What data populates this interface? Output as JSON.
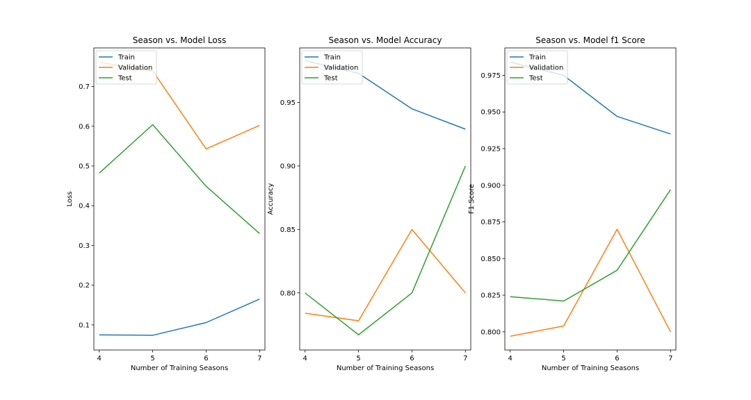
{
  "colors": {
    "train": "#1f77b4",
    "validation": "#ff7f0e",
    "test": "#2ca02c",
    "axes": "#000000",
    "legend_border": "#cccccc"
  },
  "chart_data": [
    {
      "type": "line",
      "title": "Season vs. Model Loss",
      "xlabel": "Number of Training Seasons",
      "ylabel": "Loss",
      "x": [
        4,
        5,
        6,
        7
      ],
      "xlim": [
        3.9,
        7.1
      ],
      "ylim": [
        0.037,
        0.797
      ],
      "xticks": [
        "4",
        "5",
        "6",
        "7"
      ],
      "yticks": [
        "0.1",
        "0.2",
        "0.3",
        "0.4",
        "0.5",
        "0.6",
        "0.7"
      ],
      "grid": false,
      "legend_position": "upper left",
      "series": [
        {
          "name": "Train",
          "color_key": "train",
          "values": [
            0.075,
            0.074,
            0.106,
            0.165
          ]
        },
        {
          "name": "Validation",
          "color_key": "validation",
          "values": [
            0.761,
            0.739,
            0.543,
            0.602
          ]
        },
        {
          "name": "Test",
          "color_key": "test",
          "values": [
            0.482,
            0.604,
            0.449,
            0.33
          ]
        }
      ]
    },
    {
      "type": "line",
      "title": "Season vs. Model Accuracy",
      "xlabel": "Number of Training Seasons",
      "ylabel": "Accuracy",
      "x": [
        4,
        5,
        6,
        7
      ],
      "xlim": [
        3.9,
        7.1
      ],
      "ylim": [
        0.755,
        0.993
      ],
      "xticks": [
        "4",
        "5",
        "6",
        "7"
      ],
      "yticks": [
        "0.80",
        "0.85",
        "0.90",
        "0.95"
      ],
      "grid": false,
      "legend_position": "upper left",
      "series": [
        {
          "name": "Train",
          "color_key": "train",
          "values": [
            0.983,
            0.973,
            0.945,
            0.929
          ]
        },
        {
          "name": "Validation",
          "color_key": "validation",
          "values": [
            0.784,
            0.778,
            0.85,
            0.8
          ]
        },
        {
          "name": "Test",
          "color_key": "test",
          "values": [
            0.8,
            0.767,
            0.8,
            0.9
          ]
        }
      ]
    },
    {
      "type": "line",
      "title": "Season vs. Model f1 Score",
      "xlabel": "Number of Training Seasons",
      "ylabel": "F1 Score",
      "x": [
        4,
        5,
        6,
        7
      ],
      "xlim": [
        3.9,
        7.1
      ],
      "ylim": [
        0.7876,
        0.9937
      ],
      "xticks": [
        "4",
        "5",
        "6",
        "7"
      ],
      "yticks": [
        "0.800",
        "0.825",
        "0.850",
        "0.875",
        "0.900",
        "0.925",
        "0.950",
        "0.975"
      ],
      "grid": false,
      "legend_position": "upper left",
      "series": [
        {
          "name": "Train",
          "color_key": "train",
          "values": [
            0.984,
            0.975,
            0.947,
            0.935
          ]
        },
        {
          "name": "Validation",
          "color_key": "validation",
          "values": [
            0.797,
            0.804,
            0.87,
            0.8
          ]
        },
        {
          "name": "Test",
          "color_key": "test",
          "values": [
            0.824,
            0.821,
            0.842,
            0.897
          ]
        }
      ]
    }
  ]
}
